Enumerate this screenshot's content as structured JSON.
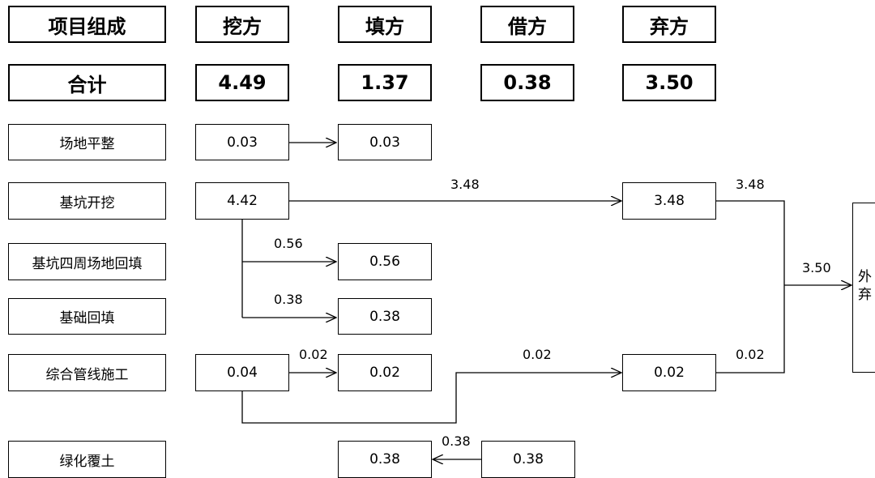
{
  "header": {
    "c0": "项目组成",
    "c1": "挖方",
    "c2": "填方",
    "c3": "借方",
    "c4": "弃方"
  },
  "total": {
    "label": "合计",
    "excavation": "4.49",
    "fill": "1.37",
    "borrow": "0.38",
    "spoil": "3.50"
  },
  "rows": {
    "r1": {
      "label": "场地平整",
      "excavation": "0.03",
      "fill": "0.03"
    },
    "r2": {
      "label": "基坑开挖",
      "excavation": "4.42",
      "spoil": "3.48"
    },
    "r3": {
      "label": "基坑四周场地回填",
      "fill": "0.56"
    },
    "r4": {
      "label": "基础回填",
      "fill": "0.38"
    },
    "r5": {
      "label": "综合管线施工",
      "excavation": "0.04",
      "fill": "0.02",
      "spoil": "0.02"
    },
    "r6": {
      "label": "绿化覆土",
      "fill": "0.38",
      "borrow": "0.38"
    }
  },
  "flows": {
    "f1": "3.48",
    "f2": "3.48",
    "f3": "0.56",
    "f4": "0.38",
    "f5": "0.02",
    "f6": "0.02",
    "f7": "0.02",
    "f8": "3.50",
    "f9": "0.38"
  },
  "destination": {
    "line1": "外",
    "line2": "弃"
  }
}
